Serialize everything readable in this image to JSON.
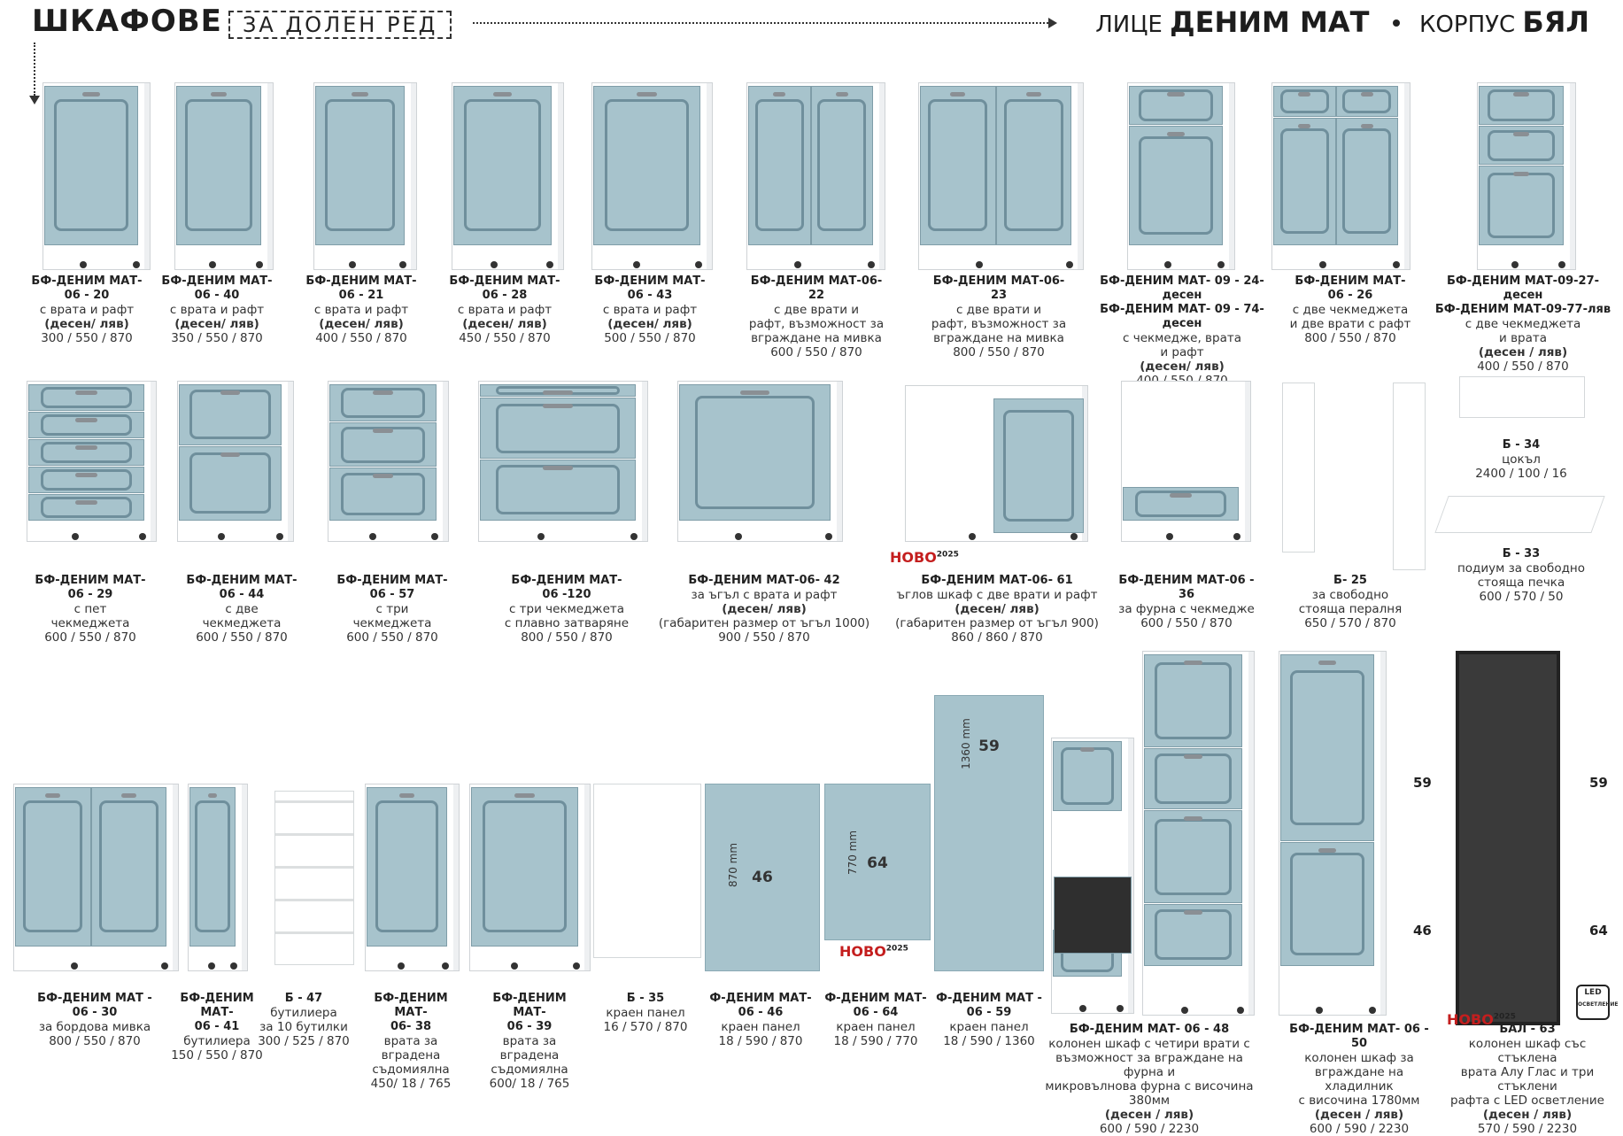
{
  "header": {
    "title": "ШКАФОВЕ",
    "badge": "ЗА ДОЛЕН РЕД",
    "face_label": "ЛИЦЕ",
    "face_value": "ДЕНИМ МАТ",
    "body_label": "КОРПУС",
    "body_value": "БЯЛ"
  },
  "row1": [
    {
      "name": "БФ-ДЕНИМ МАТ-\n06 - 20",
      "desc": "с врата и рафт",
      "side": "(десен/ ляв)",
      "dims": "300 / 550 / 870"
    },
    {
      "name": "БФ-ДЕНИМ МАТ-\n06 - 40",
      "desc": "с врата и рафт",
      "side": "(десен/ ляв)",
      "dims": "350 / 550 / 870"
    },
    {
      "name": "БФ-ДЕНИМ МАТ-\n06 - 21",
      "desc": "с врата и рафт",
      "side": "(десен/ ляв)",
      "dims": "400 / 550 / 870"
    },
    {
      "name": "БФ-ДЕНИМ МАТ-\n06 - 28",
      "desc": "с врата и рафт",
      "side": "(десен/ ляв)",
      "dims": "450 / 550 / 870"
    },
    {
      "name": "БФ-ДЕНИМ МАТ-\n06 - 43",
      "desc": "с врата и рафт",
      "side": "(десен/ ляв)",
      "dims": "500 / 550 / 870"
    },
    {
      "name": "БФ-ДЕНИМ МАТ-06- 22",
      "desc": "с две врати и\nрафт, възможност за\nвграждане на мивка",
      "side": "",
      "dims": "600 / 550 / 870"
    },
    {
      "name": "БФ-ДЕНИМ МАТ-06- 23",
      "desc": "с две врати и\nрафт, възможност за\nвграждане на мивка",
      "side": "",
      "dims": "800 / 550 / 870"
    },
    {
      "name": "БФ-ДЕНИМ МАТ- 09 - 24-десен\nБФ-ДЕНИМ МАТ- 09 - 74-десен",
      "desc": "с чекмедже, врата\nи рафт",
      "side": "(десен/ ляв)",
      "dims": "400 / 550 / 870"
    },
    {
      "name": "БФ-ДЕНИМ МАТ-\n06 - 26",
      "desc": "с две чекмеджета\nи две врати с рафт",
      "side": "",
      "dims": "800 / 550 / 870"
    },
    {
      "name": "БФ-ДЕНИМ МАТ-09-27-десен\nБФ-ДЕНИМ МАТ-09-77-ляв",
      "desc": "с две чекмеджета\nи врата",
      "side": "(десен / ляв)",
      "dims": "400 / 550 / 870"
    }
  ],
  "row2": [
    {
      "name": "БФ-ДЕНИМ МАТ-\n06 - 29",
      "desc": "с пет\nчекмеджета",
      "side": "",
      "dims": "600 / 550 / 870"
    },
    {
      "name": "БФ-ДЕНИМ МАТ-\n06 - 44",
      "desc": "с две\nчекмеджета",
      "side": "",
      "dims": "600 / 550 / 870"
    },
    {
      "name": "БФ-ДЕНИМ МАТ-\n06 - 57",
      "desc": "с три\nчекмеджета",
      "side": "",
      "dims": "600 / 550 / 870"
    },
    {
      "name": "БФ-ДЕНИМ МАТ-\n06 -120",
      "desc": "с три чекмеджета\nс плавно затваряне",
      "side": "",
      "dims": "800 / 550 / 870"
    },
    {
      "name": "БФ-ДЕНИМ МАТ-06- 42",
      "desc": "за ъгъл с врата и рафт",
      "side": "(десен/ ляв)",
      "dims": "(габаритен размер от ъгъл 1000)\n900 / 550 / 870"
    },
    {
      "name": "БФ-ДЕНИМ МАТ-06- 61",
      "desc": "ъглов шкаф с две врати и рафт",
      "side": "(десен/ ляв)",
      "dims": "(габаритен размер от ъгъл 900)\n860 / 860 / 870"
    },
    {
      "name": "БФ-ДЕНИМ МАТ-06 - 36",
      "desc": "за фурна с чекмедже",
      "side": "",
      "dims": "600 / 550 / 870"
    },
    {
      "name": "Б- 25",
      "desc": "за свободно\nстояща пералня",
      "side": "",
      "dims": "650 / 570 / 870"
    },
    {
      "name": "Б - 34",
      "desc": "цокъл",
      "side": "",
      "dims": "2400 / 100 / 16"
    },
    {
      "name": "Б - 33",
      "desc": "подиум за свободно\nстояща печка",
      "side": "",
      "dims": "600 / 570 / 50"
    }
  ],
  "row3": [
    {
      "name": "БФ-ДЕНИМ МАТ -\n06 - 30",
      "desc": "за бордова мивка",
      "side": "",
      "dims": "800 / 550 / 870"
    },
    {
      "name": "БФ-ДЕНИМ МАТ-\n06 - 41",
      "desc": "бутилиера",
      "side": "",
      "dims": "150 / 550 / 870"
    },
    {
      "name": "Б - 47",
      "desc": "бутилиера\nза 10 бутилки",
      "side": "",
      "dims": "300 / 525 / 870"
    },
    {
      "name": "БФ-ДЕНИМ МАТ-\n06- 38",
      "desc": "врата за\nвградена\nсъдомиялна",
      "side": "",
      "dims": "450/ 18 / 765"
    },
    {
      "name": "БФ-ДЕНИМ МАТ-\n06 - 39",
      "desc": "врата за\nвградена\nсъдомиялна",
      "side": "",
      "dims": "600/ 18 / 765"
    },
    {
      "name": "Б - 35",
      "desc": "краен панел",
      "side": "",
      "dims": "16 / 570 / 870"
    },
    {
      "name": "Ф-ДЕНИМ МАТ-\n06 - 46",
      "desc": "краен панел",
      "side": "",
      "dims": "18 / 590 / 870"
    },
    {
      "name": "Ф-ДЕНИМ МАТ-\n06 - 64",
      "desc": "краен панел",
      "side": "",
      "dims": "18 / 590 / 770"
    },
    {
      "name": "Ф-ДЕНИМ МАТ -\n06 - 59",
      "desc": "краен панел",
      "side": "",
      "dims": "18 / 590 / 1360"
    },
    {
      "name": "БФ-ДЕНИМ МАТ- 06 - 48",
      "desc": "колонен шкаф с четири врати с\nвъзможност за вграждане на фурна и\nмикровълнова фурна с височина 380мм",
      "side": "(десен / ляв)",
      "dims": "600 / 590 / 2230"
    },
    {
      "name": "БФ-ДЕНИМ МАТ- 06 - 50",
      "desc": "колонен шкаф за\nвграждане на хладилник\nс височина 1780мм",
      "side": "(десен / ляв)",
      "dims": "600 / 590 / 2230"
    },
    {
      "name": "БАЛ - 63",
      "desc": "колонен шкаф със стъклена\nврата Алу Глас и три стъклени\nрафта с LED осветление",
      "side": "(десен / ляв)",
      "dims": "570 / 590 / 2230"
    }
  ],
  "panel_labels": {
    "p46": "46",
    "p64": "64",
    "p59": "59",
    "d870": "870 mm",
    "d770": "770 mm",
    "d1360": "1360 mm"
  },
  "side_hints": {
    "a59": "59",
    "a46": "46",
    "b59": "59",
    "b64": "64"
  },
  "novo": {
    "text": "НОВО",
    "year": "2025"
  },
  "led": {
    "text": "LED",
    "sub": "ОСВЕТЛЕНИЕ"
  },
  "colors": {
    "face": "#a7c3cc",
    "body": "#ffffff",
    "accent": "#c41e1e"
  }
}
